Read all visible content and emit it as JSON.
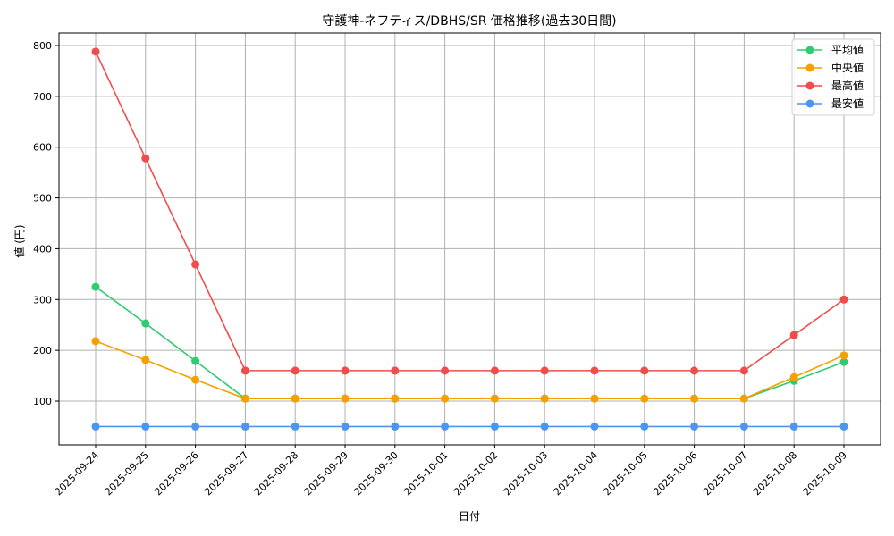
{
  "chart_data": {
    "type": "line",
    "title": "守護神-ネフティス/DBHS/SR 価格推移(過去30日間)",
    "xlabel": "日付",
    "ylabel": "値 (円)",
    "x": [
      "2025-09-24",
      "2025-09-25",
      "2025-09-26",
      "2025-09-27",
      "2025-09-28",
      "2025-09-29",
      "2025-09-30",
      "2025-10-01",
      "2025-10-02",
      "2025-10-03",
      "2025-10-04",
      "2025-10-05",
      "2025-10-06",
      "2025-10-07",
      "2025-10-08",
      "2025-10-09"
    ],
    "yticks": [
      100,
      200,
      300,
      400,
      500,
      600,
      700,
      800
    ],
    "ylim": [
      10,
      825
    ],
    "grid": true,
    "legend_position": "upper right",
    "series": [
      {
        "name": "平均値",
        "color": "#2ecc71",
        "values": [
          325,
          253,
          179,
          105,
          105,
          105,
          105,
          105,
          105,
          105,
          105,
          105,
          105,
          105,
          140,
          177
        ]
      },
      {
        "name": "中央値",
        "color": "#f5a000",
        "values": [
          218,
          181,
          142,
          105,
          105,
          105,
          105,
          105,
          105,
          105,
          105,
          105,
          105,
          105,
          147,
          190
        ]
      },
      {
        "name": "最高値",
        "color": "#f04c4c",
        "values": [
          788,
          578,
          369,
          160,
          160,
          160,
          160,
          160,
          160,
          160,
          160,
          160,
          160,
          160,
          230,
          300
        ]
      },
      {
        "name": "最安値",
        "color": "#4c96f0",
        "values": [
          50,
          50,
          50,
          50,
          50,
          50,
          50,
          50,
          50,
          50,
          50,
          50,
          50,
          50,
          50,
          50
        ]
      }
    ]
  }
}
